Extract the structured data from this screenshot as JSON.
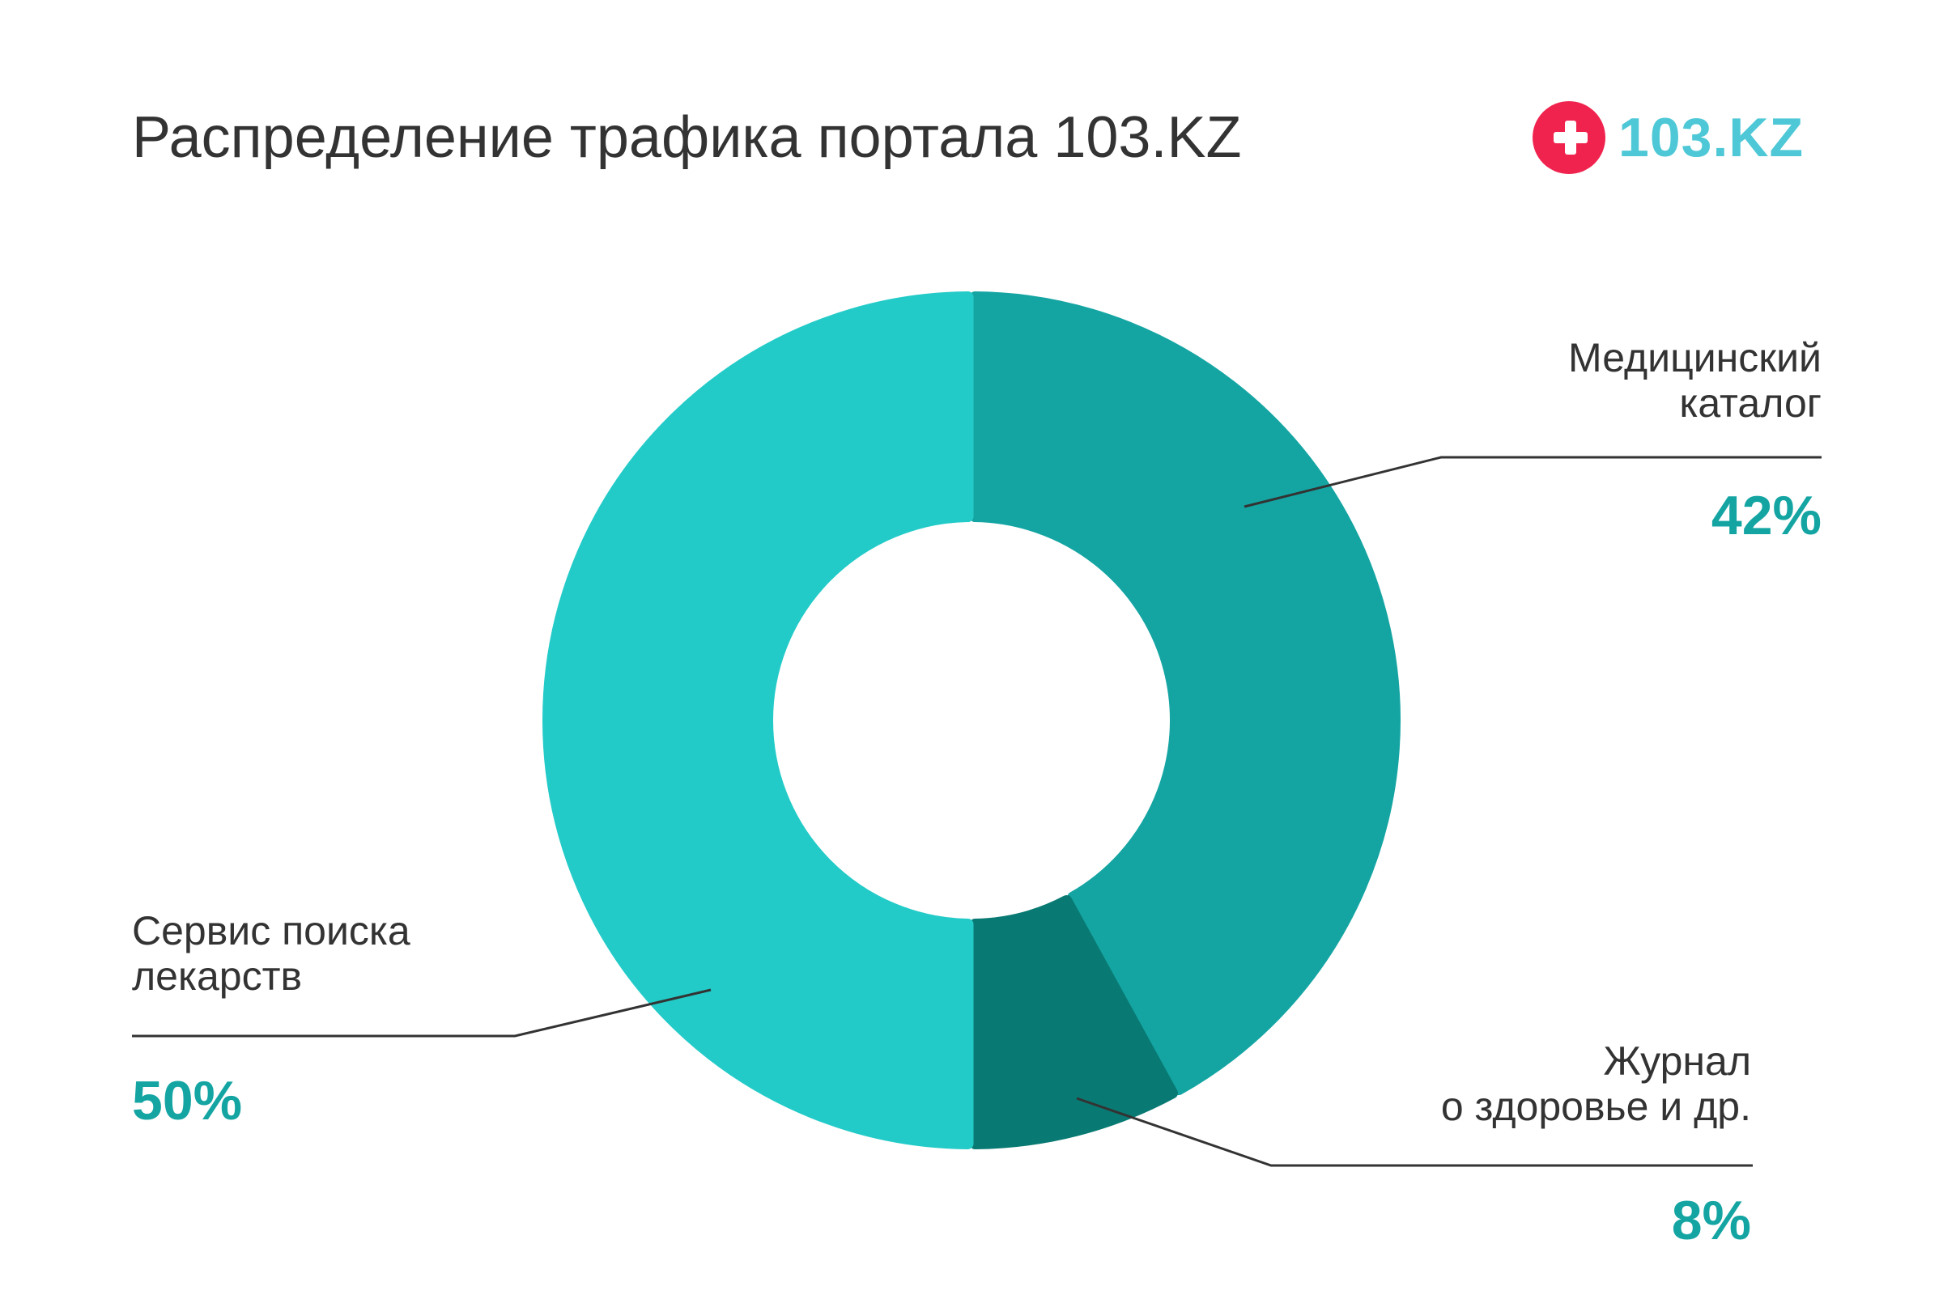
{
  "title": "Распределение трафика портала 103.KZ",
  "logo": {
    "icon": "plus-cross-icon",
    "text": "103.KZ",
    "icon_color": "#f0234e",
    "text_color": "#4ec8d6"
  },
  "chart_data": {
    "type": "pie",
    "variant": "donut",
    "title": "Распределение трафика портала 103.KZ",
    "slices": [
      {
        "label_lines": [
          "Медицинский",
          "каталог"
        ],
        "value": 42,
        "value_label": "42%",
        "color": "#14a5a3"
      },
      {
        "label_lines": [
          "Журнал",
          "о здоровье и др."
        ],
        "value": 8,
        "value_label": "8%",
        "color": "#097a73"
      },
      {
        "label_lines": [
          "Сервис поиска",
          "лекарств"
        ],
        "value": 50,
        "value_label": "50%",
        "color": "#23cbc8"
      }
    ],
    "start": "top",
    "direction": "clockwise",
    "legend": "leader-lines",
    "text_color": "#333333",
    "value_color": "#14a5a3"
  }
}
